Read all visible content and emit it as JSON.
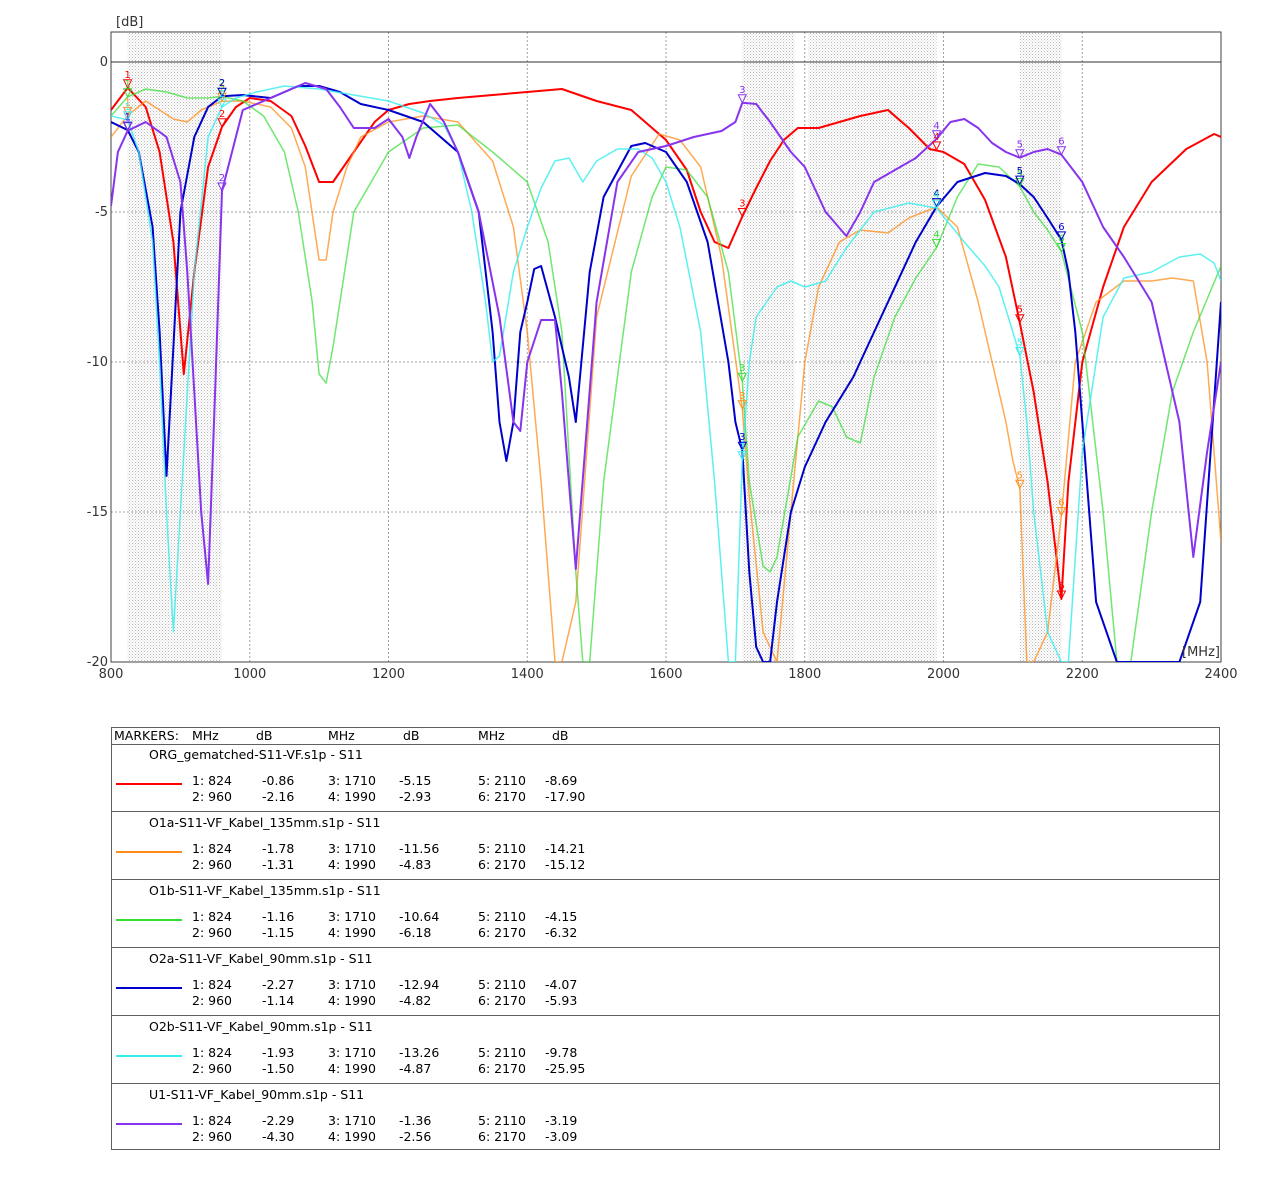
{
  "chart_data": {
    "type": "line",
    "ylabel": "[dB]",
    "xlabel": "[MHz]",
    "xlim": [
      800,
      2400
    ],
    "ylim": [
      -20,
      1
    ],
    "x_ticks": [
      "800",
      "1000",
      "1200",
      "1400",
      "1600",
      "1800",
      "2000",
      "2200",
      "2400"
    ],
    "y_ticks": [
      "0",
      "-5",
      "-10",
      "-15",
      "-20"
    ],
    "grid": true,
    "shaded_bands": [
      [
        824,
        960
      ],
      [
        1710,
        1785
      ],
      [
        1805,
        1990
      ],
      [
        2110,
        2170
      ]
    ],
    "series": [
      {
        "name": "ORG_gematched-S11-VF.s1p - S11",
        "color": "#ff0000",
        "x": [
          800,
          824,
          850,
          870,
          890,
          905,
          920,
          940,
          960,
          980,
          1000,
          1030,
          1060,
          1080,
          1100,
          1120,
          1150,
          1180,
          1200,
          1230,
          1260,
          1300,
          1350,
          1400,
          1450,
          1500,
          1550,
          1600,
          1630,
          1650,
          1670,
          1690,
          1710,
          1730,
          1750,
          1770,
          1790,
          1820,
          1850,
          1880,
          1920,
          1950,
          1980,
          2000,
          2030,
          2060,
          2090,
          2110,
          2130,
          2150,
          2170,
          2180,
          2200,
          2230,
          2260,
          2300,
          2350,
          2390,
          2400
        ],
        "y": [
          -1.6,
          -0.86,
          -1.5,
          -3,
          -6,
          -10.4,
          -7,
          -3.5,
          -2.16,
          -1.5,
          -1.2,
          -1.3,
          -1.8,
          -2.8,
          -4,
          -4,
          -3,
          -2,
          -1.6,
          -1.4,
          -1.3,
          -1.2,
          -1.1,
          -1.0,
          -0.9,
          -1.3,
          -1.6,
          -2.6,
          -3.6,
          -5,
          -6,
          -6.2,
          -5.15,
          -4.2,
          -3.3,
          -2.6,
          -2.2,
          -2.2,
          -2.0,
          -1.8,
          -1.6,
          -2.2,
          -2.9,
          -3.0,
          -3.4,
          -4.6,
          -6.5,
          -8.69,
          -11,
          -14,
          -17.9,
          -14,
          -10,
          -7.5,
          -5.5,
          -4.0,
          -2.9,
          -2.4,
          -2.5
        ]
      },
      {
        "name": "O1a-S11-VF_Kabel_135mm.s1p - S11",
        "color": "#ff8c1a",
        "x": [
          800,
          824,
          850,
          870,
          890,
          910,
          930,
          960,
          990,
          1030,
          1060,
          1080,
          1100,
          1110,
          1120,
          1140,
          1160,
          1200,
          1250,
          1300,
          1350,
          1380,
          1400,
          1420,
          1440,
          1450,
          1470,
          1500,
          1550,
          1590,
          1620,
          1650,
          1680,
          1710,
          1720,
          1740,
          1760,
          1780,
          1800,
          1820,
          1850,
          1880,
          1920,
          1950,
          1990,
          2020,
          2050,
          2070,
          2090,
          2100,
          2110,
          2120,
          2130,
          2150,
          2170,
          2190,
          2220,
          2260,
          2300,
          2330,
          2360,
          2380,
          2400
        ],
        "y": [
          -2.5,
          -1.78,
          -1.3,
          -1.6,
          -1.9,
          -2.0,
          -1.6,
          -1.31,
          -1.3,
          -1.5,
          -2.2,
          -3.5,
          -6.6,
          -6.6,
          -5,
          -3.5,
          -2.5,
          -2.0,
          -1.8,
          -2.0,
          -3.3,
          -5.5,
          -9.0,
          -14,
          -20,
          -20,
          -18,
          -8.5,
          -3.8,
          -2.4,
          -2.6,
          -3.5,
          -6.5,
          -11.56,
          -14.5,
          -19,
          -20,
          -15,
          -10,
          -7.5,
          -6.0,
          -5.6,
          -5.7,
          -5.2,
          -4.83,
          -5.5,
          -8,
          -10,
          -12,
          -13.3,
          -14.21,
          -20,
          -20,
          -19,
          -15.12,
          -10,
          -8.0,
          -7.3,
          -7.3,
          -7.2,
          -7.3,
          -10,
          -16
        ]
      },
      {
        "name": "O1b-S11-VF_Kabel_135mm.s1p - S11",
        "color": "#33dd33",
        "x": [
          800,
          824,
          850,
          880,
          910,
          940,
          960,
          990,
          1020,
          1050,
          1070,
          1090,
          1100,
          1110,
          1120,
          1150,
          1200,
          1250,
          1300,
          1350,
          1400,
          1430,
          1450,
          1470,
          1480,
          1490,
          1510,
          1550,
          1580,
          1600,
          1630,
          1660,
          1690,
          1710,
          1720,
          1740,
          1750,
          1760,
          1790,
          1820,
          1840,
          1860,
          1880,
          1900,
          1930,
          1960,
          1990,
          2020,
          2050,
          2080,
          2110,
          2130,
          2150,
          2170,
          2200,
          2230,
          2250,
          2270,
          2300,
          2330,
          2360,
          2400
        ],
        "y": [
          -1.8,
          -1.16,
          -0.9,
          -1.0,
          -1.2,
          -1.2,
          -1.15,
          -1.3,
          -1.8,
          -3,
          -5,
          -8,
          -10.4,
          -10.7,
          -9.5,
          -5,
          -3,
          -2.2,
          -2.1,
          -3,
          -4,
          -6,
          -9,
          -17,
          -20,
          -20,
          -14,
          -7,
          -4.5,
          -3.5,
          -3.6,
          -4.5,
          -7,
          -10.64,
          -14,
          -16.8,
          -17,
          -16.5,
          -12.5,
          -11.3,
          -11.5,
          -12.5,
          -12.7,
          -10.5,
          -8.5,
          -7.2,
          -6.18,
          -4.5,
          -3.4,
          -3.5,
          -4.15,
          -5,
          -5.6,
          -6.32,
          -9,
          -15,
          -20,
          -20,
          -15,
          -11,
          -9,
          -6.8
        ]
      },
      {
        "name": "O2a-S11-VF_Kabel_90mm.s1p - S11",
        "color": "#0000cc",
        "x": [
          800,
          824,
          840,
          860,
          870,
          880,
          890,
          900,
          920,
          940,
          960,
          990,
          1030,
          1070,
          1100,
          1130,
          1160,
          1200,
          1250,
          1300,
          1330,
          1350,
          1360,
          1370,
          1380,
          1390,
          1400,
          1410,
          1420,
          1440,
          1450,
          1460,
          1470,
          1490,
          1510,
          1550,
          1570,
          1600,
          1630,
          1660,
          1690,
          1700,
          1710,
          1720,
          1730,
          1740,
          1750,
          1760,
          1780,
          1800,
          1830,
          1870,
          1920,
          1960,
          1990,
          2020,
          2060,
          2090,
          2110,
          2130,
          2150,
          2170,
          2180,
          2190,
          2200,
          2220,
          2250,
          2300,
          2340,
          2370,
          2400
        ],
        "y": [
          -2.0,
          -2.27,
          -3,
          -5.5,
          -9,
          -13.8,
          -9.5,
          -5,
          -2.5,
          -1.5,
          -1.14,
          -1.1,
          -1.2,
          -0.8,
          -0.8,
          -1.0,
          -1.4,
          -1.6,
          -2.0,
          -3,
          -5,
          -9,
          -12,
          -13.3,
          -12,
          -9,
          -8,
          -6.9,
          -6.8,
          -8.5,
          -9.5,
          -10.5,
          -12,
          -7,
          -4.5,
          -2.8,
          -2.7,
          -3,
          -4,
          -6,
          -10,
          -12,
          -12.94,
          -17,
          -19.5,
          -20,
          -20,
          -18,
          -15,
          -13.5,
          -12,
          -10.5,
          -8,
          -6.0,
          -4.82,
          -4.0,
          -3.7,
          -3.8,
          -4.07,
          -4.5,
          -5.2,
          -5.93,
          -7,
          -9,
          -12,
          -18,
          -20,
          -20,
          -20,
          -18,
          -8
        ]
      },
      {
        "name": "O2b-S11-VF_Kabel_90mm.s1p - S11",
        "color": "#33eeee",
        "x": [
          800,
          824,
          840,
          860,
          870,
          880,
          890,
          900,
          920,
          940,
          960,
          980,
          1010,
          1050,
          1100,
          1150,
          1200,
          1250,
          1280,
          1300,
          1320,
          1340,
          1350,
          1360,
          1380,
          1400,
          1420,
          1440,
          1460,
          1480,
          1500,
          1530,
          1560,
          1580,
          1600,
          1620,
          1650,
          1670,
          1690,
          1700,
          1710,
          1720,
          1730,
          1760,
          1780,
          1800,
          1830,
          1860,
          1900,
          1950,
          1990,
          2030,
          2060,
          2080,
          2100,
          2110,
          2120,
          2130,
          2150,
          2170,
          2180,
          2200,
          2230,
          2260,
          2300,
          2340,
          2370,
          2390,
          2400
        ],
        "y": [
          -1.8,
          -1.93,
          -3,
          -6,
          -10,
          -15,
          -19,
          -15,
          -7,
          -2.5,
          -1.5,
          -1.2,
          -1.0,
          -0.8,
          -0.9,
          -1.1,
          -1.3,
          -1.7,
          -2.1,
          -3,
          -5,
          -8,
          -10,
          -9.8,
          -7,
          -5.5,
          -4.2,
          -3.3,
          -3.2,
          -4,
          -3.3,
          -2.9,
          -2.9,
          -3.2,
          -4,
          -5.5,
          -9,
          -14,
          -20,
          -20,
          -13.26,
          -10,
          -8.5,
          -7.5,
          -7.3,
          -7.5,
          -7.3,
          -6.2,
          -5,
          -4.7,
          -4.87,
          -6,
          -6.8,
          -7.5,
          -9,
          -9.78,
          -12,
          -15,
          -19,
          -25.95,
          -20,
          -13,
          -8.5,
          -7.2,
          -7.0,
          -6.5,
          -6.4,
          -6.7,
          -7.3
        ]
      },
      {
        "name": "U1-S11-VF_Kabel_90mm.s1p - S11",
        "color": "#8833ee",
        "x": [
          800,
          810,
          824,
          850,
          880,
          900,
          910,
          920,
          930,
          940,
          950,
          960,
          990,
          1030,
          1080,
          1110,
          1130,
          1150,
          1180,
          1200,
          1220,
          1230,
          1240,
          1260,
          1280,
          1300,
          1330,
          1360,
          1380,
          1390,
          1400,
          1420,
          1440,
          1450,
          1460,
          1470,
          1500,
          1530,
          1560,
          1600,
          1640,
          1680,
          1700,
          1710,
          1730,
          1750,
          1780,
          1800,
          1830,
          1860,
          1880,
          1900,
          1930,
          1960,
          1990,
          2010,
          2030,
          2050,
          2070,
          2090,
          2110,
          2130,
          2150,
          2170,
          2200,
          2230,
          2260,
          2300,
          2340,
          2360,
          2380,
          2400
        ],
        "y": [
          -4.8,
          -3,
          -2.29,
          -2.0,
          -2.5,
          -4,
          -7,
          -11,
          -15,
          -17.4,
          -11,
          -4.3,
          -1.6,
          -1.2,
          -0.7,
          -0.9,
          -1.5,
          -2.2,
          -2.2,
          -1.9,
          -2.5,
          -3.2,
          -2.5,
          -1.4,
          -2.0,
          -3,
          -5,
          -8.5,
          -12,
          -12.3,
          -10,
          -8.6,
          -8.6,
          -11,
          -14,
          -16.9,
          -8,
          -4,
          -3,
          -2.8,
          -2.5,
          -2.3,
          -2.0,
          -1.36,
          -1.4,
          -2.0,
          -3.0,
          -3.5,
          -5.0,
          -5.8,
          -5.0,
          -4.0,
          -3.6,
          -3.2,
          -2.56,
          -2.0,
          -1.9,
          -2.2,
          -2.7,
          -3.0,
          -3.19,
          -3.0,
          -2.9,
          -3.09,
          -4,
          -5.5,
          -6.5,
          -8,
          -12,
          -16.5,
          -13,
          -10
        ]
      }
    ]
  },
  "markers_table": {
    "header": {
      "label": "MARKERS:",
      "mhz": "MHz",
      "db": "dB"
    },
    "blocks": [
      {
        "title": "ORG_gematched-S11-VF.s1p - S11",
        "color": "#ff0000",
        "rows": [
          [
            {
              "n": "1: 824",
              "v": "-0.86"
            },
            {
              "n": "3: 1710",
              "v": "-5.15"
            },
            {
              "n": "5: 2110",
              "v": "-8.69"
            }
          ],
          [
            {
              "n": "2: 960",
              "v": "-2.16"
            },
            {
              "n": "4: 1990",
              "v": "-2.93"
            },
            {
              "n": "6: 2170",
              "v": "-17.90"
            }
          ]
        ]
      },
      {
        "title": "O1a-S11-VF_Kabel_135mm.s1p - S11",
        "color": "#ff8c1a",
        "rows": [
          [
            {
              "n": "1: 824",
              "v": "-1.78"
            },
            {
              "n": "3: 1710",
              "v": "-11.56"
            },
            {
              "n": "5: 2110",
              "v": "-14.21"
            }
          ],
          [
            {
              "n": "2: 960",
              "v": "-1.31"
            },
            {
              "n": "4: 1990",
              "v": "-4.83"
            },
            {
              "n": "6: 2170",
              "v": "-15.12"
            }
          ]
        ]
      },
      {
        "title": "O1b-S11-VF_Kabel_135mm.s1p - S11",
        "color": "#33dd33",
        "rows": [
          [
            {
              "n": "1: 824",
              "v": "-1.16"
            },
            {
              "n": "3: 1710",
              "v": "-10.64"
            },
            {
              "n": "5: 2110",
              "v": "-4.15"
            }
          ],
          [
            {
              "n": "2: 960",
              "v": "-1.15"
            },
            {
              "n": "4: 1990",
              "v": "-6.18"
            },
            {
              "n": "6: 2170",
              "v": "-6.32"
            }
          ]
        ]
      },
      {
        "title": "O2a-S11-VF_Kabel_90mm.s1p - S11",
        "color": "#0000cc",
        "rows": [
          [
            {
              "n": "1: 824",
              "v": "-2.27"
            },
            {
              "n": "3: 1710",
              "v": "-12.94"
            },
            {
              "n": "5: 2110",
              "v": "-4.07"
            }
          ],
          [
            {
              "n": "2: 960",
              "v": "-1.14"
            },
            {
              "n": "4: 1990",
              "v": "-4.82"
            },
            {
              "n": "6: 2170",
              "v": "-5.93"
            }
          ]
        ]
      },
      {
        "title": "O2b-S11-VF_Kabel_90mm.s1p - S11",
        "color": "#33eeee",
        "rows": [
          [
            {
              "n": "1: 824",
              "v": "-1.93"
            },
            {
              "n": "3: 1710",
              "v": "-13.26"
            },
            {
              "n": "5: 2110",
              "v": "-9.78"
            }
          ],
          [
            {
              "n": "2: 960",
              "v": "-1.50"
            },
            {
              "n": "4: 1990",
              "v": "-4.87"
            },
            {
              "n": "6: 2170",
              "v": "-25.95"
            }
          ]
        ]
      },
      {
        "title": "U1-S11-VF_Kabel_90mm.s1p - S11",
        "color": "#8833ee",
        "rows": [
          [
            {
              "n": "1: 824",
              "v": "-2.29"
            },
            {
              "n": "3: 1710",
              "v": "-1.36"
            },
            {
              "n": "5: 2110",
              "v": "-3.19"
            }
          ],
          [
            {
              "n": "2: 960",
              "v": "-4.30"
            },
            {
              "n": "4: 1990",
              "v": "-2.56"
            },
            {
              "n": "6: 2170",
              "v": "-3.09"
            }
          ]
        ]
      }
    ]
  }
}
